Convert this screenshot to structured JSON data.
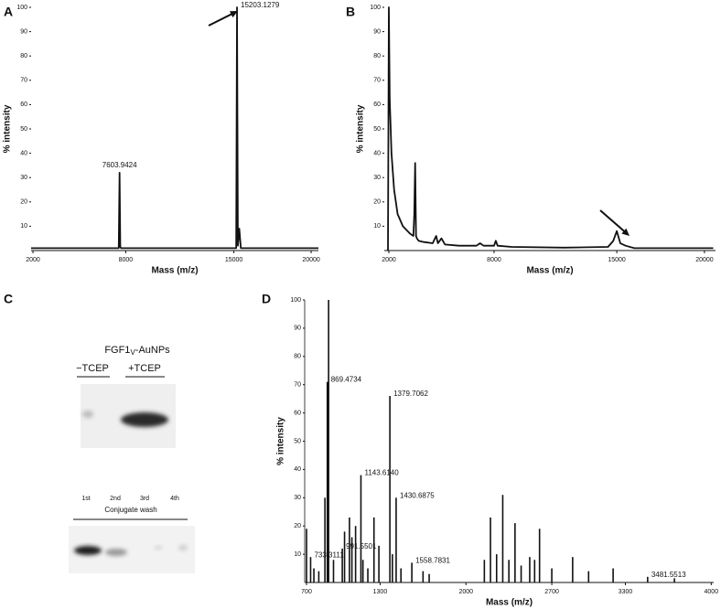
{
  "chart_data": [
    {
      "panel": "A",
      "type": "line",
      "xlabel": "Mass (m/z)",
      "ylabel": "% intensity",
      "color": "#111111",
      "xlim": [
        1880,
        20470
      ],
      "xticks": [
        2000,
        8000,
        15000,
        20000
      ],
      "ylim": [
        0,
        100
      ],
      "yticks": [
        10,
        20,
        30,
        40,
        50,
        60,
        70,
        80,
        90,
        100
      ],
      "x": [
        1880,
        7550,
        7603.9424,
        7650,
        7700,
        15150,
        15203.1279,
        15260,
        15350,
        15450,
        20470
      ],
      "values": [
        1,
        1,
        32,
        1.5,
        1,
        1,
        100,
        2,
        9,
        1,
        1
      ],
      "annotations": [
        {
          "label": "7603.9424",
          "x": 7603.9424,
          "y": 32
        },
        {
          "label": "15203.1279",
          "x": 15203.1279,
          "y": 100
        }
      ]
    },
    {
      "panel": "B",
      "type": "line",
      "xlabel": "Mass (m/z)",
      "ylabel": "% intensity",
      "color": "#111111",
      "xlim": [
        1740,
        20630
      ],
      "xticks": [
        2000,
        8000,
        15000,
        20000
      ],
      "ylim": [
        0,
        100
      ],
      "yticks": [
        10,
        20,
        30,
        40,
        50,
        60,
        70,
        80,
        90,
        100
      ],
      "x": [
        1950,
        2000,
        2050,
        2150,
        2300,
        2500,
        2800,
        3200,
        3400,
        3450,
        3500,
        3550,
        3600,
        3700,
        4000,
        4500,
        4700,
        4800,
        5000,
        5200,
        6000,
        7000,
        7200,
        7400,
        8000,
        8100,
        8200,
        9000,
        12000,
        14500,
        14800,
        15000,
        15200,
        15500,
        16000,
        17000,
        20500
      ],
      "values": [
        0,
        100,
        62,
        40,
        25,
        15,
        10,
        7,
        6,
        15,
        36,
        6,
        5,
        4,
        3.5,
        3,
        6,
        3,
        5,
        2.5,
        2,
        2,
        3,
        2,
        2,
        4,
        2,
        1.5,
        1.2,
        1.5,
        4,
        8,
        3,
        2,
        1,
        1,
        1
      ],
      "annotations": []
    },
    {
      "panel": "D",
      "type": "stem",
      "xlabel": "Mass (m/z)",
      "ylabel": "% intensity",
      "color": "#111111",
      "xlim": [
        685,
        4020
      ],
      "xticks": [
        700,
        1300,
        2000,
        2700,
        3300,
        4000
      ],
      "ylim": [
        0,
        100
      ],
      "yticks": [
        10,
        20,
        30,
        40,
        50,
        60,
        70,
        80,
        90,
        100
      ],
      "x": [
        700,
        733.3111,
        760,
        800,
        850,
        869.4734,
        880,
        920,
        991.5501,
        1010,
        1050,
        1070,
        1100,
        1143.614,
        1160,
        1200,
        1250,
        1290,
        1379.7062,
        1400,
        1430.6875,
        1470,
        1558.7831,
        1650,
        1700,
        2150,
        2200,
        2250,
        2300,
        2350,
        2400,
        2450,
        2520,
        2560,
        2600,
        2700,
        2870,
        3000,
        3200,
        3481.5513,
        3700
      ],
      "values": [
        19,
        9,
        5,
        4,
        30,
        71,
        100,
        8,
        12,
        18,
        23,
        16,
        20,
        38,
        8,
        5,
        23,
        13,
        66,
        10,
        30,
        5,
        7,
        4,
        3,
        8,
        23,
        10,
        31,
        8,
        21,
        6,
        9,
        8,
        19,
        5,
        9,
        4,
        5,
        2,
        1.5
      ],
      "annotations": [
        {
          "label": "733.3111",
          "x": 733.3111,
          "y": 9
        },
        {
          "label": "869.4734",
          "x": 869.4734,
          "y": 71
        },
        {
          "label": "991.5501",
          "x": 991.5501,
          "y": 12
        },
        {
          "label": "1143.6140",
          "x": 1143.614,
          "y": 38
        },
        {
          "label": "1379.7062",
          "x": 1379.7062,
          "y": 66
        },
        {
          "label": "1430.6875",
          "x": 1430.6875,
          "y": 30
        },
        {
          "label": "1558.7831",
          "x": 1558.7831,
          "y": 7
        },
        {
          "label": "3481.5513",
          "x": 3481.5513,
          "y": 2
        }
      ]
    }
  ],
  "blot": {
    "panel": "C",
    "title_main": "FGF1",
    "title_sub": "V",
    "title_rest": "-AuNPs",
    "lanes_top": [
      "−TCEP",
      "+TCEP"
    ],
    "lanes_bottom": [
      "1st",
      "2nd",
      "3rd",
      "4th"
    ],
    "bottom_label": "Conjugate wash"
  }
}
